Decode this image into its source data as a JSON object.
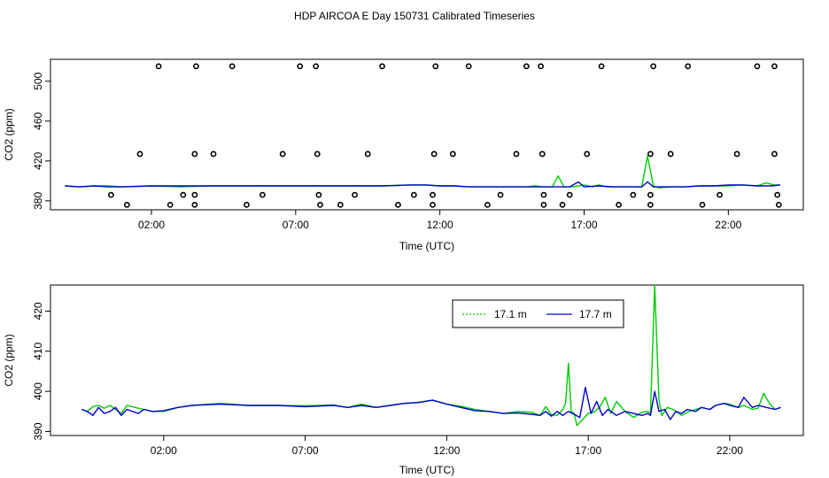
{
  "figure_title": "HDP AIRCOA E  Day 150731  Calibrated Timeseries",
  "chart_data": [
    {
      "type": "scatter",
      "title": "",
      "xlabel": "Time (UTC)",
      "ylabel": "CO2 (ppm)",
      "xlim": [
        -1.5,
        24.6
      ],
      "ylim": [
        371,
        522
      ],
      "x_ticks": [
        2,
        7,
        12,
        17,
        22
      ],
      "x_tick_labels": [
        "02:00",
        "07:00",
        "12:00",
        "17:00",
        "22:00"
      ],
      "y_ticks": [
        380,
        420,
        460,
        500
      ],
      "y_tick_labels": [
        "380",
        "420",
        "460",
        "500"
      ],
      "grid": false,
      "point_style": "open-circle",
      "points": [
        [
          1.15,
          376
        ],
        [
          0.6,
          386
        ],
        [
          1.6,
          427
        ],
        [
          2.25,
          515
        ],
        [
          2.65,
          376
        ],
        [
          3.1,
          386
        ],
        [
          3.5,
          376
        ],
        [
          3.5,
          386
        ],
        [
          3.5,
          427
        ],
        [
          3.55,
          515
        ],
        [
          4.15,
          427
        ],
        [
          4.8,
          515
        ],
        [
          5.3,
          376
        ],
        [
          5.85,
          386
        ],
        [
          6.55,
          427
        ],
        [
          7.15,
          515
        ],
        [
          7.7,
          515
        ],
        [
          7.75,
          427
        ],
        [
          7.8,
          386
        ],
        [
          7.85,
          376
        ],
        [
          8.55,
          376
        ],
        [
          9.05,
          386
        ],
        [
          9.5,
          427
        ],
        [
          10.0,
          515
        ],
        [
          10.55,
          376
        ],
        [
          11.1,
          386
        ],
        [
          11.75,
          386
        ],
        [
          11.75,
          376
        ],
        [
          11.8,
          427
        ],
        [
          11.85,
          515
        ],
        [
          12.45,
          427
        ],
        [
          13.0,
          515
        ],
        [
          13.65,
          376
        ],
        [
          14.1,
          386
        ],
        [
          14.65,
          427
        ],
        [
          15.0,
          515
        ],
        [
          15.5,
          515
        ],
        [
          15.55,
          427
        ],
        [
          15.6,
          386
        ],
        [
          15.6,
          376
        ],
        [
          16.25,
          376
        ],
        [
          16.5,
          386
        ],
        [
          17.1,
          427
        ],
        [
          17.6,
          515
        ],
        [
          18.2,
          376
        ],
        [
          18.7,
          386
        ],
        [
          19.3,
          376
        ],
        [
          19.3,
          386
        ],
        [
          19.3,
          427
        ],
        [
          19.4,
          515
        ],
        [
          20.0,
          427
        ],
        [
          20.6,
          515
        ],
        [
          21.1,
          376
        ],
        [
          21.7,
          386
        ],
        [
          22.3,
          427
        ],
        [
          23.0,
          515
        ],
        [
          23.6,
          515
        ],
        [
          23.6,
          427
        ],
        [
          23.7,
          386
        ],
        [
          23.75,
          376
        ]
      ],
      "series": [
        {
          "color": "#00cc00",
          "x": [
            -1.0,
            -0.5,
            0.0,
            0.5,
            1.0,
            2.0,
            3.0,
            4.0,
            5.0,
            6.0,
            7.0,
            8.0,
            9.0,
            10.0,
            11.0,
            11.5,
            12.0,
            12.5,
            13.0,
            14.0,
            15.0,
            15.3,
            15.6,
            15.9,
            16.1,
            16.3,
            16.6,
            17.0,
            17.3,
            17.5,
            17.8,
            18.0,
            18.5,
            19.0,
            19.2,
            19.4,
            19.6,
            20.0,
            20.5,
            21.0,
            21.5,
            22.0,
            22.5,
            23.0,
            23.3,
            23.6,
            23.8
          ],
          "y": [
            395,
            394,
            395,
            395,
            394,
            395,
            394,
            395,
            395,
            395,
            395,
            395,
            395,
            395,
            396,
            396,
            395,
            395,
            394,
            394,
            394,
            395,
            394,
            394,
            405,
            394,
            394,
            396,
            394,
            396,
            394,
            394,
            394,
            394,
            425,
            395,
            393,
            394,
            394,
            395,
            395,
            395,
            396,
            395,
            398,
            396,
            396
          ]
        },
        {
          "color": "#0000cc",
          "x": [
            -1.0,
            -0.5,
            0.0,
            0.5,
            1.0,
            2.0,
            3.0,
            4.0,
            5.0,
            6.0,
            7.0,
            8.0,
            9.0,
            10.0,
            11.0,
            11.5,
            12.0,
            12.5,
            13.0,
            14.0,
            15.0,
            15.5,
            16.0,
            16.5,
            16.8,
            17.0,
            17.5,
            18.0,
            18.5,
            19.0,
            19.2,
            19.4,
            19.6,
            20.0,
            20.5,
            21.0,
            21.5,
            22.0,
            22.5,
            23.0,
            23.5,
            23.8
          ],
          "y": [
            395,
            394,
            395,
            394,
            394,
            395,
            395,
            395,
            395,
            395,
            395,
            395,
            395,
            395,
            396,
            396,
            395,
            395,
            394,
            394,
            394,
            394,
            394,
            394,
            399,
            394,
            395,
            394,
            394,
            394,
            399,
            394,
            394,
            394,
            394,
            395,
            395,
            396,
            396,
            395,
            395,
            396
          ]
        }
      ]
    },
    {
      "type": "line",
      "title": "",
      "xlabel": "Time (UTC)",
      "ylabel": "CO2 (ppm)",
      "xlim": [
        -2.0,
        24.6
      ],
      "ylim": [
        389,
        426.5
      ],
      "x_ticks": [
        2,
        7,
        12,
        17,
        22
      ],
      "x_tick_labels": [
        "02:00",
        "07:00",
        "12:00",
        "17:00",
        "22:00"
      ],
      "y_ticks": [
        390,
        400,
        410,
        420
      ],
      "y_tick_labels": [
        "390",
        "400",
        "410",
        "420"
      ],
      "grid": false,
      "legend_placement": "top-right",
      "series": [
        {
          "name": "17.1 m",
          "color": "#00cc00",
          "x": [
            -0.9,
            -0.7,
            -0.5,
            -0.3,
            -0.1,
            0.1,
            0.3,
            0.5,
            0.7,
            0.9,
            1.1,
            1.3,
            1.6,
            2.0,
            2.5,
            3.0,
            4.0,
            5.0,
            6.0,
            7.0,
            8.0,
            8.5,
            9.0,
            9.5,
            10.0,
            10.5,
            11.0,
            11.5,
            12.0,
            12.5,
            13.0,
            13.5,
            14.0,
            14.5,
            15.0,
            15.3,
            15.5,
            15.7,
            15.9,
            16.1,
            16.2,
            16.3,
            16.4,
            16.5,
            16.6,
            16.8,
            17.0,
            17.2,
            17.4,
            17.6,
            17.8,
            18.0,
            18.3,
            18.6,
            18.9,
            19.1,
            19.2,
            19.35,
            19.5,
            19.6,
            19.8,
            20.0,
            20.3,
            20.5,
            20.8,
            21.0,
            21.3,
            21.5,
            21.8,
            22.0,
            22.3,
            22.5,
            22.8,
            23.0,
            23.2,
            23.4,
            23.6,
            23.8
          ],
          "y": [
            395.5,
            395.0,
            396.2,
            396.5,
            395.8,
            396.5,
            395.5,
            394.5,
            396.5,
            396.2,
            395.8,
            395.5,
            395.0,
            395.0,
            396.0,
            396.5,
            397.0,
            396.5,
            396.5,
            396.4,
            396.6,
            396.0,
            396.8,
            396.0,
            396.5,
            397.0,
            397.3,
            397.8,
            396.8,
            396.3,
            395.5,
            395.0,
            394.5,
            395.0,
            394.8,
            394.0,
            396.2,
            394.2,
            394.0,
            395.5,
            397.0,
            407.0,
            395.0,
            394.5,
            391.5,
            393.0,
            394.5,
            394.8,
            396.0,
            398.5,
            394.5,
            397.5,
            395.0,
            393.5,
            394.8,
            395.0,
            394.5,
            426.5,
            398.0,
            394.0,
            396.0,
            395.5,
            394.0,
            394.8,
            395.5,
            396.0,
            395.5,
            396.5,
            397.0,
            396.8,
            396.0,
            396.5,
            395.5,
            395.8,
            399.5,
            397.0,
            395.5,
            396.0
          ]
        },
        {
          "name": "17.7 m",
          "color": "#0000cc",
          "x": [
            -0.9,
            -0.7,
            -0.5,
            -0.3,
            -0.1,
            0.1,
            0.3,
            0.5,
            0.7,
            0.9,
            1.1,
            1.3,
            1.6,
            2.0,
            2.5,
            3.0,
            4.0,
            5.0,
            6.0,
            7.0,
            8.0,
            8.5,
            9.0,
            9.5,
            10.0,
            10.5,
            11.0,
            11.5,
            12.0,
            12.5,
            13.0,
            13.5,
            14.0,
            14.5,
            15.0,
            15.3,
            15.5,
            15.7,
            15.9,
            16.1,
            16.3,
            16.5,
            16.7,
            16.9,
            17.1,
            17.3,
            17.5,
            17.7,
            18.0,
            18.3,
            18.6,
            18.9,
            19.1,
            19.2,
            19.35,
            19.5,
            19.7,
            19.9,
            20.1,
            20.3,
            20.5,
            20.8,
            21.0,
            21.3,
            21.5,
            21.8,
            22.0,
            22.3,
            22.5,
            22.8,
            23.0,
            23.3,
            23.6,
            23.8
          ],
          "y": [
            395.5,
            395.0,
            394.0,
            396.0,
            394.5,
            395.0,
            396.0,
            394.0,
            395.5,
            395.0,
            394.5,
            395.5,
            395.0,
            395.2,
            396.0,
            396.5,
            396.8,
            396.5,
            396.5,
            396.2,
            396.5,
            396.0,
            396.5,
            396.0,
            396.5,
            397.0,
            397.2,
            397.8,
            396.8,
            396.0,
            395.2,
            395.0,
            394.5,
            394.6,
            394.3,
            394.0,
            395.0,
            393.8,
            395.0,
            394.0,
            395.0,
            394.3,
            393.5,
            401.0,
            394.5,
            397.5,
            394.0,
            395.5,
            394.0,
            395.0,
            394.5,
            394.0,
            394.5,
            394.0,
            400.0,
            395.0,
            395.5,
            393.0,
            395.0,
            394.5,
            395.5,
            395.0,
            396.0,
            395.5,
            396.5,
            397.0,
            396.5,
            396.0,
            398.5,
            396.0,
            396.5,
            396.0,
            395.5,
            396.0
          ]
        }
      ]
    }
  ]
}
